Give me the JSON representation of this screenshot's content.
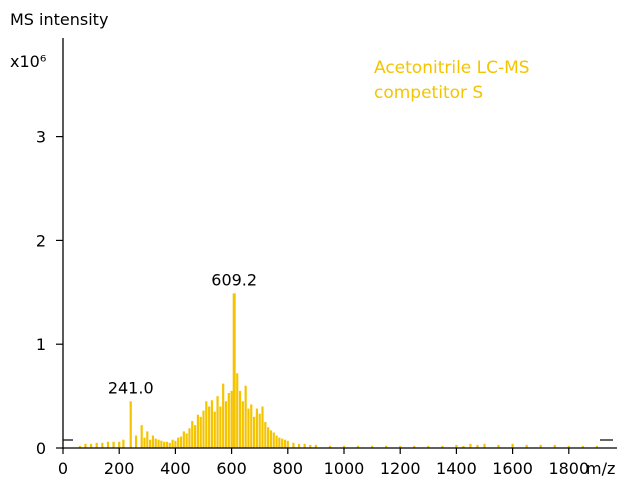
{
  "chart_data": {
    "type": "bar",
    "ylabel": "MS intensity",
    "y_multiplier": "x10⁶",
    "xlabel": "m/z",
    "xlim": [
      0,
      2000
    ],
    "ylim": [
      0,
      3.95
    ],
    "x_ticks": [
      0,
      200,
      400,
      600,
      800,
      1000,
      1200,
      1400,
      1600,
      1800
    ],
    "y_ticks": [
      0,
      1,
      2,
      3
    ],
    "grid": false,
    "color": "#F5C400",
    "series": [
      {
        "name": "Acetonitrile LC-MS competitor S",
        "x": [
          60,
          80,
          100,
          120,
          140,
          160,
          180,
          200,
          215,
          241,
          260,
          280,
          290,
          300,
          310,
          320,
          330,
          340,
          350,
          360,
          370,
          380,
          390,
          400,
          410,
          420,
          430,
          440,
          450,
          460,
          470,
          480,
          490,
          500,
          510,
          520,
          530,
          540,
          550,
          560,
          570,
          580,
          590,
          600,
          609.2,
          620,
          630,
          640,
          650,
          660,
          670,
          680,
          690,
          700,
          710,
          720,
          730,
          740,
          750,
          760,
          770,
          780,
          790,
          800,
          820,
          840,
          860,
          880,
          900,
          950,
          1000,
          1050,
          1100,
          1150,
          1200,
          1250,
          1300,
          1350,
          1400,
          1425,
          1450,
          1475,
          1500,
          1550,
          1600,
          1650,
          1700,
          1750,
          1800,
          1850,
          1900
        ],
        "values": [
          0.02,
          0.04,
          0.04,
          0.05,
          0.05,
          0.06,
          0.06,
          0.06,
          0.08,
          0.45,
          0.12,
          0.22,
          0.1,
          0.16,
          0.08,
          0.12,
          0.09,
          0.08,
          0.07,
          0.06,
          0.06,
          0.05,
          0.08,
          0.07,
          0.1,
          0.11,
          0.16,
          0.14,
          0.19,
          0.26,
          0.22,
          0.32,
          0.3,
          0.36,
          0.45,
          0.4,
          0.46,
          0.35,
          0.5,
          0.4,
          0.62,
          0.45,
          0.53,
          0.55,
          1.49,
          0.72,
          0.55,
          0.45,
          0.6,
          0.38,
          0.42,
          0.3,
          0.38,
          0.33,
          0.4,
          0.25,
          0.2,
          0.17,
          0.15,
          0.12,
          0.1,
          0.09,
          0.08,
          0.07,
          0.05,
          0.04,
          0.04,
          0.03,
          0.03,
          0.02,
          0.02,
          0.02,
          0.02,
          0.02,
          0.02,
          0.02,
          0.02,
          0.02,
          0.03,
          0.02,
          0.04,
          0.03,
          0.04,
          0.03,
          0.04,
          0.03,
          0.03,
          0.03,
          0.02,
          0.02,
          0.02
        ]
      }
    ],
    "annotations": [
      {
        "label": "241.0",
        "x": 241.0,
        "y": 0.45
      },
      {
        "label": "609.2",
        "x": 609.2,
        "y": 1.49
      }
    ],
    "legend": {
      "lines": [
        "Acetonitrile LC-MS",
        "competitor S"
      ],
      "placement": "top-right"
    }
  }
}
